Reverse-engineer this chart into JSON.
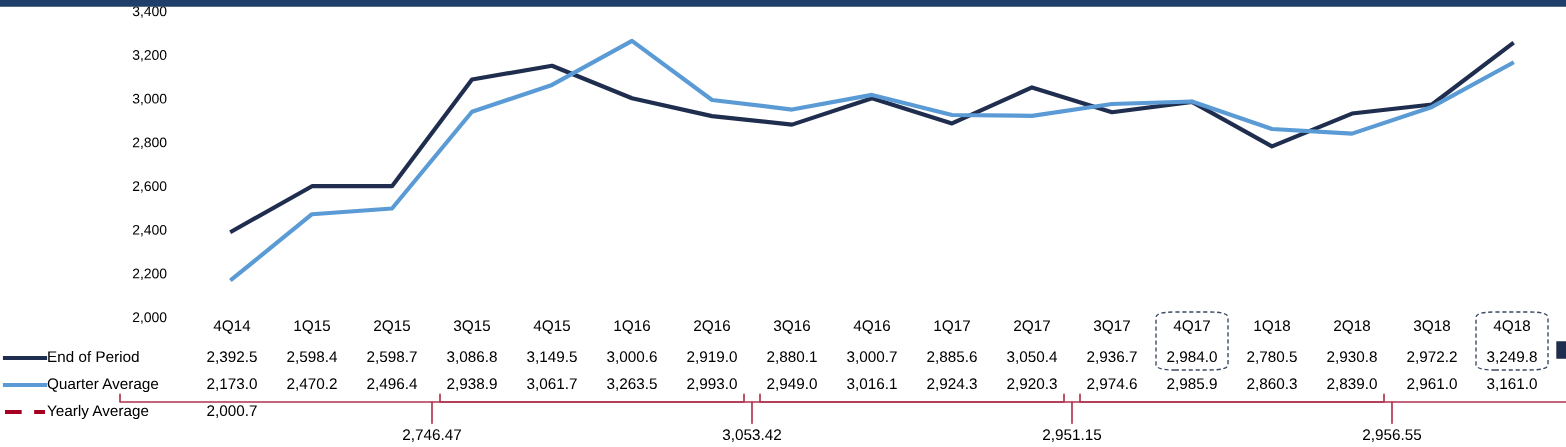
{
  "chart_data": {
    "type": "line",
    "categories": [
      "4Q14",
      "1Q15",
      "2Q15",
      "3Q15",
      "4Q15",
      "1Q16",
      "2Q16",
      "3Q16",
      "4Q16",
      "1Q17",
      "2Q17",
      "3Q17",
      "4Q17",
      "1Q18",
      "2Q18",
      "3Q18",
      "4Q18"
    ],
    "series": [
      {
        "name": "End of Period",
        "color": "#1f2d4e",
        "line_style": "solid",
        "values": [
          2392.5,
          2598.4,
          2598.7,
          3086.8,
          3149.5,
          3000.6,
          2919.0,
          2880.1,
          3000.7,
          2885.6,
          3050.4,
          2936.7,
          2984.0,
          2780.5,
          2930.8,
          2972.2,
          3249.8
        ],
        "value_labels": [
          "2,392.5",
          "2,598.4",
          "2,598.7",
          "3,086.8",
          "3,149.5",
          "3,000.6",
          "2,919.0",
          "2,880.1",
          "3,000.7",
          "2,885.6",
          "3,050.4",
          "2,936.7",
          "2,984.0",
          "2,780.5",
          "2,930.8",
          "2,972.2",
          "3,249.8"
        ]
      },
      {
        "name": "Quarter Average",
        "color": "#5b9bd5",
        "line_style": "solid",
        "values": [
          2173.0,
          2470.2,
          2496.4,
          2938.9,
          3061.7,
          3263.5,
          2993.0,
          2949.0,
          3016.1,
          2924.3,
          2920.3,
          2974.6,
          2985.9,
          2860.3,
          2839.0,
          2961.0,
          3161.0
        ],
        "value_labels": [
          "2,173.0",
          "2,470.2",
          "2,496.4",
          "2,938.9",
          "3,061.7",
          "3,263.5",
          "2,993.0",
          "2,949.0",
          "3,016.1",
          "2,924.3",
          "2,920.3",
          "2,974.6",
          "2,985.9",
          "2,860.3",
          "2,839.0",
          "2,961.0",
          "3,161.0"
        ]
      },
      {
        "name": "Yearly Average",
        "color": "#a50021",
        "line_style": "dashed",
        "values": [
          null,
          null,
          null,
          null,
          null,
          null,
          null,
          null,
          null,
          null,
          null,
          null,
          null,
          null,
          null,
          null,
          null
        ],
        "value_labels": [
          "2,000.7",
          null,
          null,
          null,
          null,
          null,
          null,
          null,
          null,
          null,
          null,
          null,
          null,
          null,
          null,
          null,
          null
        ]
      }
    ],
    "ylim": [
      2000,
      3400
    ],
    "yticks": [
      {
        "value": 2000,
        "label": "2,000"
      },
      {
        "value": 2200,
        "label": "2,200"
      },
      {
        "value": 2400,
        "label": "2,400"
      },
      {
        "value": 2600,
        "label": "2,600"
      },
      {
        "value": 2800,
        "label": "2,800"
      },
      {
        "value": 3000,
        "label": "3,000"
      },
      {
        "value": 3200,
        "label": "3,200"
      },
      {
        "value": 3400,
        "label": "3,400"
      }
    ],
    "grid": false,
    "legend": "bottom left",
    "annotations": [
      "2,746.47",
      "3,053.42",
      "2,951.15",
      "2,956.55"
    ]
  }
}
